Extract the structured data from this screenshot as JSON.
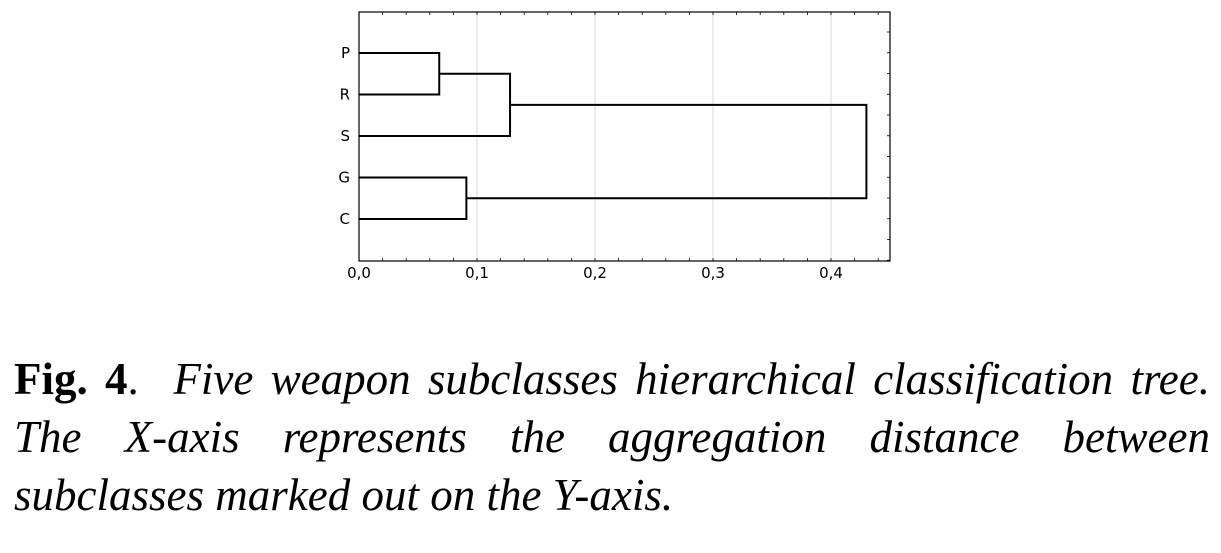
{
  "chart_data": {
    "type": "dendrogram",
    "title": "",
    "xlabel": "",
    "ylabel": "",
    "xlim": [
      0,
      0.45
    ],
    "x_ticks": [
      "0,0",
      "0,1",
      "0,2",
      "0,3",
      "0,4"
    ],
    "x_tick_values": [
      0,
      0.1,
      0.2,
      0.3,
      0.4
    ],
    "grid": "vertical",
    "leaves": [
      "P",
      "R",
      "S",
      "G",
      "C"
    ],
    "merges": [
      {
        "children": [
          "P",
          "R"
        ],
        "distance": 0.068
      },
      {
        "children": [
          "P-R",
          "S"
        ],
        "distance": 0.128
      },
      {
        "children": [
          "G",
          "C"
        ],
        "distance": 0.091
      },
      {
        "children": [
          "P-R-S",
          "G-C"
        ],
        "distance": 0.43
      }
    ]
  },
  "caption": {
    "label": "Fig. 4",
    "separator": ".",
    "text": "Five weapon subclasses hierarchical classification tree. The X-axis represents the aggregation distance between subclasses marked out on the Y-axis."
  }
}
